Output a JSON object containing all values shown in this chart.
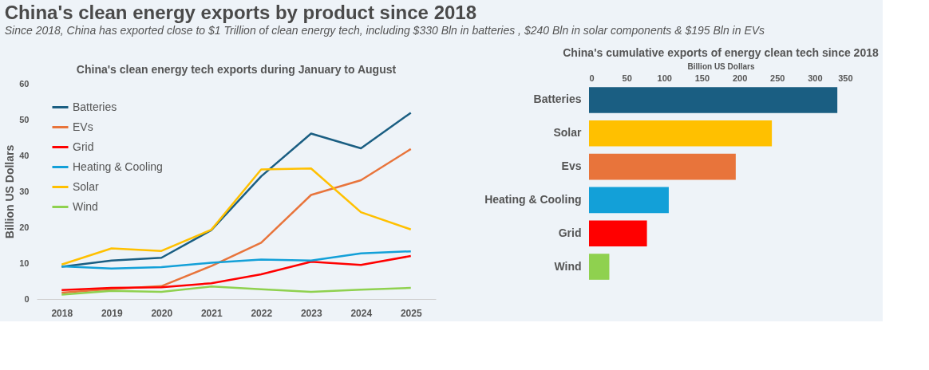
{
  "chart_data": [
    {
      "type": "line",
      "title": "China's clean energy tech exports during January to August",
      "annotations": [
        "China's clean energy exports by product since 2018",
        "Since 2018, China has exported close to $1 Trillion of clean energy tech, including $330 Bln in batteries , $240 Bln in solar components & $195 Bln in EVs"
      ],
      "categories": [
        "2018",
        "2019",
        "2020",
        "2021",
        "2022",
        "2023",
        "2024",
        "2025"
      ],
      "ylabel": "Billion US Dollars",
      "ylim": [
        0,
        60
      ],
      "yticks": [
        0,
        10,
        20,
        30,
        40,
        50,
        60
      ],
      "grid": false,
      "legend": "top left",
      "series": [
        {
          "name": "Batteries",
          "color": "#1a5e82",
          "values": [
            9.0,
            10.7,
            11.5,
            19.2,
            34.2,
            46.1,
            42.0,
            51.9
          ]
        },
        {
          "name": "EVs",
          "color": "#e8743b",
          "values": [
            1.8,
            2.8,
            3.6,
            9.2,
            15.7,
            29.0,
            33.1,
            41.8
          ]
        },
        {
          "name": "Grid",
          "color": "#ff0000",
          "values": [
            2.5,
            3.1,
            3.3,
            4.4,
            6.9,
            10.4,
            9.5,
            12.0
          ]
        },
        {
          "name": "Heating & Cooling",
          "color": "#13a0d8",
          "values": [
            9.1,
            8.5,
            8.9,
            10.1,
            11.0,
            10.7,
            12.7,
            13.3
          ]
        },
        {
          "name": "Solar",
          "color": "#ffc000",
          "values": [
            9.6,
            14.1,
            13.4,
            19.3,
            36.1,
            36.4,
            24.2,
            19.4
          ]
        },
        {
          "name": "Wind",
          "color": "#8fd14f",
          "values": [
            1.2,
            2.3,
            2.0,
            3.5,
            2.7,
            2.0,
            2.6,
            3.1
          ]
        }
      ]
    },
    {
      "type": "bar",
      "orientation": "horizontal",
      "title": "China's cumulative exports of energy clean tech since 2018",
      "xlabel": "Billion US Dollars",
      "xlim": [
        0,
        350
      ],
      "xticks": [
        0,
        50,
        100,
        150,
        200,
        250,
        300,
        350
      ],
      "grid": false,
      "categories": [
        "Batteries",
        "Solar",
        "Evs",
        "Heating & Cooling",
        "Grid",
        "Wind"
      ],
      "values": [
        330,
        243,
        195,
        106,
        77,
        27
      ],
      "colors": [
        "#1a5e82",
        "#ffc000",
        "#e8743b",
        "#13a0d8",
        "#ff0000",
        "#8fd14f"
      ]
    }
  ]
}
